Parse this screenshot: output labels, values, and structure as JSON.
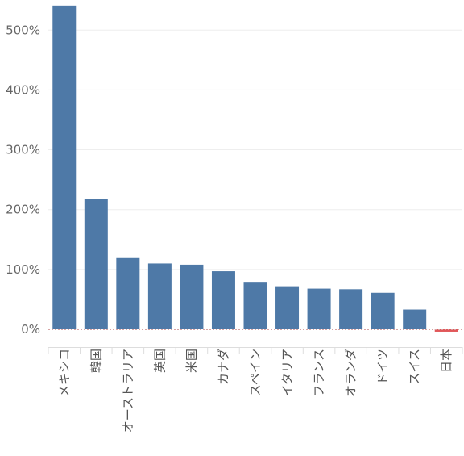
{
  "chart_data": {
    "type": "bar",
    "title": "",
    "xlabel": "",
    "ylabel": "",
    "categories": [
      "メキシコ",
      "韓国",
      "オーストラリア",
      "英国",
      "米国",
      "カナダ",
      "スペイン",
      "イタリア",
      "フランス",
      "オランダ",
      "ドイツ",
      "スイス",
      "日本"
    ],
    "values": [
      541,
      218,
      119,
      110,
      108,
      97,
      78,
      72,
      68,
      67,
      61,
      33,
      -4
    ],
    "ylim": [
      -30,
      545
    ],
    "yticks": [
      0,
      100,
      200,
      300,
      400,
      500
    ],
    "ytick_labels": [
      "0%",
      "100%",
      "200%",
      "300%",
      "400%",
      "500%"
    ],
    "grid": true,
    "legend": "none",
    "colors": {
      "positive": "#4e79a7",
      "negative": "#e15759",
      "grid": "#eeeeee",
      "zero_line": "#d7a3a3"
    }
  }
}
